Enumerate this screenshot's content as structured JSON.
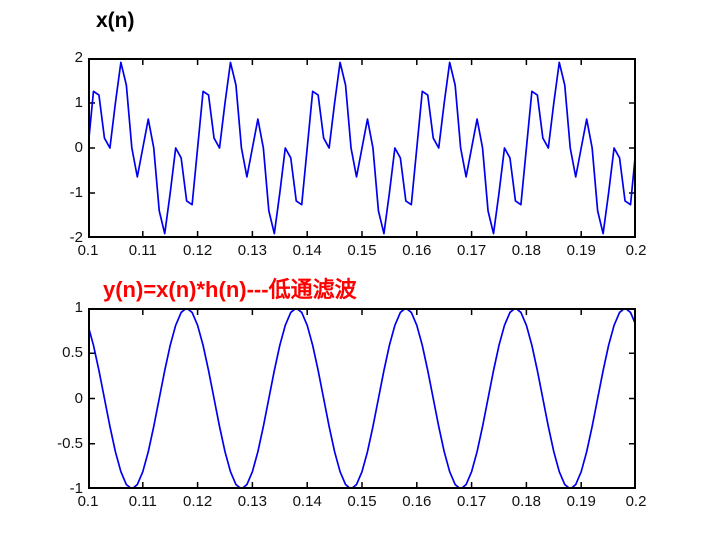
{
  "figure": {
    "kind": "matlab-style figure, two stacked subplots, white background"
  },
  "colors": {
    "trace_blue": "#0000ee",
    "axis_black": "#000000",
    "title_black": "#000000",
    "subtitle_red": "#ff0000",
    "background": "#ffffff"
  },
  "chart_data": [
    {
      "id": "top-plot",
      "type": "line",
      "title": "x(n)",
      "title_color": "#000000",
      "signal": "x(n) = sin(2*pi*50*t) + sin(2*pi*200*t), sampled at fs = 1000 Hz",
      "x_start": 0.1,
      "x_step": 0.001,
      "xlim": [
        0.1,
        0.2
      ],
      "ylim": [
        -2,
        2
      ],
      "xticks": [
        0.1,
        0.11,
        0.12,
        0.13,
        0.14,
        0.15,
        0.16,
        0.17,
        0.18,
        0.19,
        0.2
      ],
      "xtick_labels": [
        "0.1",
        "0.11",
        "0.12",
        "0.13",
        "0.14",
        "0.15",
        "0.16",
        "0.17",
        "0.18",
        "0.19",
        "0.2"
      ],
      "yticks": [
        2,
        1,
        0,
        -1,
        -2
      ],
      "ytick_labels": [
        "2",
        "1",
        "0",
        "-1",
        "-2"
      ],
      "line_color": "#0000ee",
      "grid": false,
      "values": [
        0,
        1.26,
        1.176,
        0.221,
        0,
        1,
        1.902,
        1.397,
        0,
        -0.642,
        0,
        0.642,
        0,
        -1.397,
        -1.902,
        -1,
        0,
        -0.221,
        -1.176,
        -1.26,
        0,
        1.26,
        1.176,
        0.221,
        0,
        1,
        1.902,
        1.397,
        0,
        -0.642,
        0,
        0.642,
        0,
        -1.397,
        -1.902,
        -1,
        0,
        -0.221,
        -1.176,
        -1.26,
        0,
        1.26,
        1.176,
        0.221,
        0,
        1,
        1.902,
        1.397,
        0,
        -0.642,
        0,
        0.642,
        0,
        -1.397,
        -1.902,
        -1,
        0,
        -0.221,
        -1.176,
        -1.26,
        0,
        1.26,
        1.176,
        0.221,
        0,
        1,
        1.902,
        1.397,
        0,
        -0.642,
        0,
        0.642,
        0,
        -1.397,
        -1.902,
        -1,
        0,
        -0.221,
        -1.176,
        -1.26,
        0,
        1.26,
        1.176,
        0.221,
        0,
        1,
        1.902,
        1.397,
        0,
        -0.642,
        0,
        0.642,
        0,
        -1.397,
        -1.902,
        -1,
        0,
        -0.221,
        -1.176,
        -1.26,
        0
      ]
    },
    {
      "id": "bottom-plot",
      "type": "line",
      "title": "y(n)=x(n)*h(n)---低通滤波",
      "title_color": "#ff0000",
      "signal": "y(n) = sin(2*pi*50*(t - 0.013)) : 50 Hz component after low-pass FIR filtering (13-sample group delay)",
      "x_start": 0.1,
      "x_step": 0.001,
      "xlim": [
        0.1,
        0.2
      ],
      "ylim": [
        -1,
        1
      ],
      "xticks": [
        0.1,
        0.11,
        0.12,
        0.13,
        0.14,
        0.15,
        0.16,
        0.17,
        0.18,
        0.19,
        0.2
      ],
      "xtick_labels": [
        "0.1",
        "0.11",
        "0.12",
        "0.13",
        "0.14",
        "0.15",
        "0.16",
        "0.17",
        "0.18",
        "0.19",
        "0.2"
      ],
      "yticks": [
        1,
        0.5,
        0,
        -0.5,
        -1
      ],
      "ytick_labels": [
        "1",
        "0.5",
        "0",
        "-0.5",
        "-1"
      ],
      "line_color": "#0000ee",
      "grid": false,
      "values": [
        0.809,
        0.588,
        0.309,
        0,
        -0.309,
        -0.588,
        -0.809,
        -0.951,
        -1,
        -0.951,
        -0.809,
        -0.588,
        -0.309,
        0,
        0.309,
        0.588,
        0.809,
        0.951,
        1,
        0.951,
        0.809,
        0.588,
        0.309,
        0,
        -0.309,
        -0.588,
        -0.809,
        -0.951,
        -1,
        -0.951,
        -0.809,
        -0.588,
        -0.309,
        0,
        0.309,
        0.588,
        0.809,
        0.951,
        1,
        0.951,
        0.809,
        0.588,
        0.309,
        0,
        -0.309,
        -0.588,
        -0.809,
        -0.951,
        -1,
        -0.951,
        -0.809,
        -0.588,
        -0.309,
        0,
        0.309,
        0.588,
        0.809,
        0.951,
        1,
        0.951,
        0.809,
        0.588,
        0.309,
        0,
        -0.309,
        -0.588,
        -0.809,
        -0.951,
        -1,
        -0.951,
        -0.809,
        -0.588,
        -0.309,
        0,
        0.309,
        0.588,
        0.809,
        0.951,
        1,
        0.951,
        0.809,
        0.588,
        0.309,
        0,
        -0.309,
        -0.588,
        -0.809,
        -0.951,
        -1,
        -0.951,
        -0.809,
        -0.588,
        -0.309,
        0,
        0.309,
        0.588,
        0.809,
        0.951,
        1,
        0.951,
        0.809
      ]
    }
  ]
}
